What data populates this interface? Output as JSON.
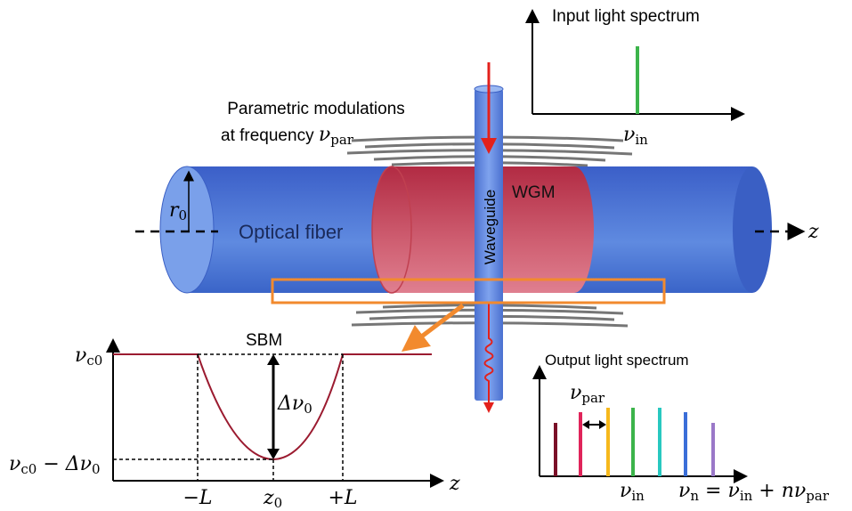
{
  "input_spectrum": {
    "title": "Input light spectrum",
    "axis_label": {
      "symbol": "ν",
      "sub": "in"
    }
  },
  "modulation": {
    "line1": "Parametric modulations",
    "line2": "at frequency ",
    "symbol": "ν",
    "sub": "par"
  },
  "fiber": {
    "label": "Optical fiber",
    "radius": {
      "symbol": "r",
      "sub": "0"
    },
    "axis": "z"
  },
  "wgm": "WGM",
  "waveguide": "Waveguide",
  "sbm": {
    "title": "SBM",
    "top": {
      "symbol": "ν",
      "sub": "c0"
    },
    "depth": {
      "prefix": "Δ",
      "symbol": "ν",
      "sub": "0"
    },
    "bottom": {
      "symbol": "ν",
      "sub": "c0",
      "rest": " − Δ",
      "symbol2": "ν",
      "sub2": "0"
    },
    "xaxis": "z",
    "ticks": {
      "left": "−L",
      "center": {
        "symbol": "z",
        "sub": "0"
      },
      "right": "+L"
    }
  },
  "output_spectrum": {
    "title": "Output light spectrum",
    "spacing": {
      "symbol": "ν",
      "sub": "par"
    },
    "center": {
      "symbol": "ν",
      "sub": "in"
    },
    "formula": {
      "s1": "ν",
      "b1": "n",
      "eq": " = ",
      "s2": "ν",
      "b2": "in",
      "plus": " + n",
      "s3": "ν",
      "b3": "par"
    }
  }
}
